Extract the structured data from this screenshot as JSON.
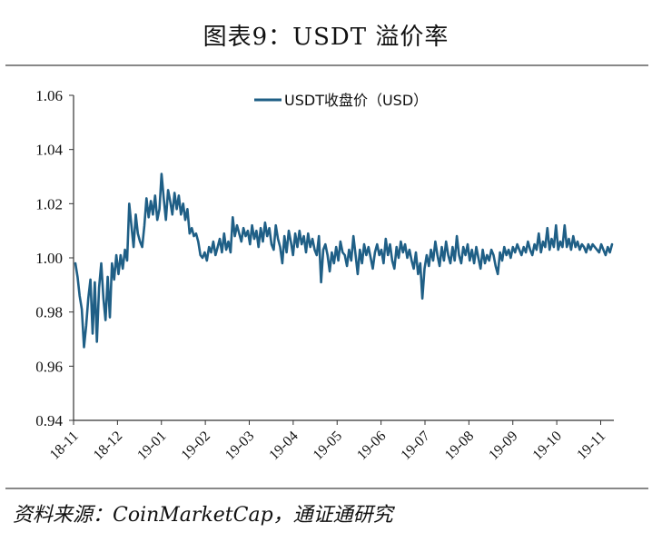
{
  "figure_title": "图表9：USDT 溢价率",
  "source": "资料来源：CoinMarketCap，通证通研究",
  "chart_data": {
    "type": "line",
    "series": [
      {
        "name": "USDT收盘价（USD）",
        "color": "#1f5f86",
        "values": [
          0.998,
          0.993,
          0.986,
          0.981,
          0.967,
          0.975,
          0.985,
          0.992,
          0.972,
          0.991,
          0.969,
          0.989,
          0.998,
          0.985,
          0.977,
          0.993,
          0.978,
          0.998,
          0.992,
          1.001,
          0.994,
          1.001,
          0.996,
          1.003,
          0.999,
          1.02,
          1.012,
          1.004,
          1.016,
          1.009,
          1.006,
          1.004,
          1.012,
          1.022,
          1.015,
          1.021,
          1.016,
          1.023,
          1.014,
          1.018,
          1.031,
          1.022,
          1.014,
          1.025,
          1.021,
          1.016,
          1.024,
          1.018,
          1.023,
          1.016,
          1.02,
          1.014,
          1.018,
          1.009,
          1.011,
          1.008,
          1.009,
          1.006,
          1.001,
          1.0,
          1.002,
          0.999,
          1.004,
          1.002,
          1.006,
          1.001,
          1.004,
          1.007,
          1.002,
          1.009,
          1.003,
          1.006,
          1.002,
          1.015,
          1.008,
          1.012,
          1.009,
          1.006,
          1.011,
          1.008,
          1.01,
          1.005,
          1.012,
          1.007,
          1.01,
          1.004,
          1.011,
          1.006,
          1.013,
          1.008,
          1.011,
          1.005,
          1.003,
          1.012,
          1.007,
          1.004,
          0.998,
          1.008,
          1.002,
          1.01,
          1.006,
          1.001,
          1.009,
          1.004,
          1.01,
          1.005,
          1.008,
          1.002,
          1.009,
          1.004,
          1.007,
          1.003,
          1.001,
          1.008,
          0.991,
          1.003,
          1.005,
          1.001,
          0.995,
          1.002,
          0.998,
          1.004,
          0.999,
          1.006,
          1.002,
          1.001,
          0.997,
          1.003,
          0.999,
          1.008,
          1.001,
          0.994,
          1.003,
          0.998,
          1.005,
          1.001,
          1.004,
          1.0,
          0.996,
          1.002,
          1.005,
          1.001,
          1.003,
          0.998,
          1.007,
          1.001,
          1.005,
          0.999,
          0.996,
          1.004,
          1.0,
          1.006,
          1.002,
          1.005,
          1.0,
          1.003,
          0.999,
          0.996,
          1.002,
          0.994,
          0.998,
          0.985,
          0.996,
          1.001,
          0.997,
          1.003,
          0.999,
          1.006,
          1.001,
          0.997,
          1.004,
          0.999,
          1.006,
          1.001,
          0.998,
          1.004,
          0.999,
          1.008,
          1.001,
          0.998,
          1.004,
          1.001,
          1.005,
          0.999,
          1.003,
          0.998,
          1.004,
          1.0,
          0.996,
          1.003,
          0.998,
          1.001,
          0.999,
          1.003,
          1.001,
          0.997,
          0.994,
          1.002,
          0.999,
          1.004,
          1.001,
          1.003,
          1.0,
          1.004,
          1.002,
          1.005,
          1.003,
          1.001,
          1.004,
          1.002,
          1.006,
          1.003,
          1.001,
          1.005,
          1.003,
          1.009,
          1.002,
          1.006,
          1.004,
          1.011,
          1.003,
          1.007,
          1.004,
          1.012,
          1.003,
          1.006,
          1.004,
          1.012,
          1.004,
          1.007,
          1.003,
          1.008,
          1.004,
          1.006,
          1.003,
          1.005,
          1.004,
          1.002,
          1.005,
          1.003,
          1.005,
          1.004,
          1.003,
          1.002,
          1.005,
          1.003,
          1.001,
          1.004,
          1.002,
          1.005
        ]
      }
    ],
    "x_tick_labels": [
      "18-11",
      "18-12",
      "19-01",
      "19-02",
      "19-03",
      "19-04",
      "19-05",
      "19-06",
      "19-07",
      "19-08",
      "19-09",
      "19-10",
      "19-11"
    ],
    "y_tick_labels": [
      "0.94",
      "0.96",
      "0.98",
      "1.00",
      "1.02",
      "1.04",
      "1.06"
    ],
    "ylim": [
      0.94,
      1.06
    ],
    "legend_position": "top-center",
    "grid": false
  }
}
